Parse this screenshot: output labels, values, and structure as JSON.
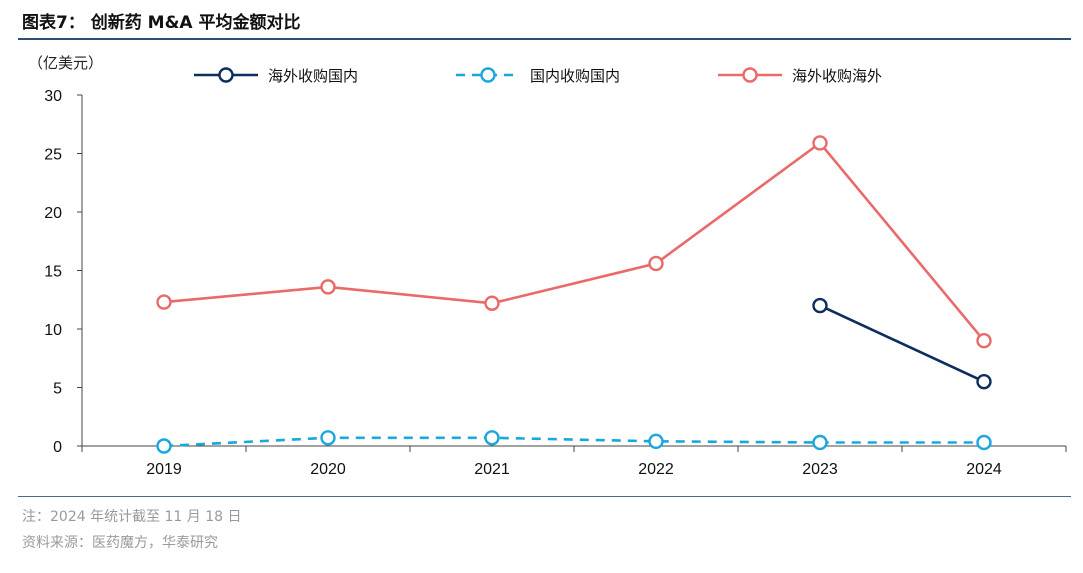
{
  "title": "图表7：  创新药 M&A 平均金额对比",
  "footer": {
    "note": "注：2024 年统计截至 11 月 18 日",
    "source": "资料来源：医药魔方，华泰研究"
  },
  "chart_data": {
    "type": "line",
    "unit_label": "（亿美元）",
    "x": [
      "2019",
      "2020",
      "2021",
      "2022",
      "2023",
      "2024"
    ],
    "ylim": [
      0,
      30
    ],
    "yticks": [
      0,
      5,
      10,
      15,
      20,
      25,
      30
    ],
    "grid": false,
    "legend_position": "top",
    "series": [
      {
        "name": "海外收购国内",
        "color": "#0d2d5e",
        "dashed": false,
        "values": [
          null,
          null,
          null,
          null,
          12.0,
          5.5
        ]
      },
      {
        "name": "国内收购国内",
        "color": "#1aa7df",
        "dashed": true,
        "values": [
          0.0,
          0.7,
          0.7,
          0.4,
          0.3,
          0.3
        ]
      },
      {
        "name": "海外收购海外",
        "color": "#ea6a6a",
        "dashed": false,
        "values": [
          12.3,
          13.6,
          12.2,
          15.6,
          25.9,
          9.0
        ]
      }
    ]
  }
}
